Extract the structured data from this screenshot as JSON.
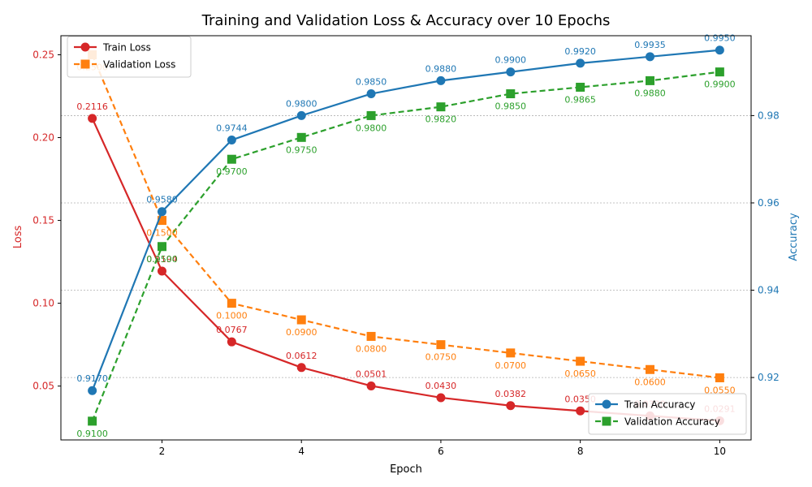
{
  "chart_data": {
    "type": "line",
    "title": "Training and Validation Loss & Accuracy over 10 Epochs",
    "xlabel": "Epoch",
    "ylabel_left": "Loss",
    "ylabel_right": "Accuracy",
    "x": [
      1,
      2,
      3,
      4,
      5,
      6,
      7,
      8,
      9,
      10
    ],
    "x_ticks": [
      2,
      4,
      6,
      8,
      10
    ],
    "xlim": [
      0.55,
      10.45
    ],
    "ylim_left": [
      0.0175,
      0.2615
    ],
    "ylim_right": [
      0.9057,
      0.9983
    ],
    "y_ticks_left": [
      0.05,
      0.1,
      0.15,
      0.2,
      0.25
    ],
    "y_tick_labels_left": [
      "0.05",
      "0.10",
      "0.15",
      "0.20",
      "0.25"
    ],
    "y_ticks_right": [
      0.92,
      0.94,
      0.96,
      0.98
    ],
    "y_tick_labels_right": [
      "0.92",
      "0.94",
      "0.96",
      "0.98"
    ],
    "grid": "horizontal, right axis",
    "series": [
      {
        "name": "Train Loss",
        "axis": "left",
        "color": "#d62728",
        "style": "solid",
        "marker": "circle",
        "label_pos": "above",
        "values": [
          0.2116,
          0.1194,
          0.0767,
          0.0612,
          0.0501,
          0.043,
          0.0382,
          0.035,
          0.032,
          0.0291
        ],
        "labels": [
          "0.2116",
          "0.1194",
          "0.0767",
          "0.0612",
          "0.0501",
          "0.0430",
          "0.0382",
          "0.0350",
          "0.0320",
          "0.0291"
        ]
      },
      {
        "name": "Validation Loss",
        "axis": "left",
        "color": "#ff7f0e",
        "style": "dashed",
        "marker": "square",
        "label_pos": "below",
        "values": [
          0.25,
          0.15,
          0.1,
          0.09,
          0.08,
          0.075,
          0.07,
          0.065,
          0.06,
          0.055
        ],
        "labels": [
          "0.2500",
          "0.1500",
          "0.1000",
          "0.0900",
          "0.0800",
          "0.0750",
          "0.0700",
          "0.0650",
          "0.0600",
          "0.0550"
        ]
      },
      {
        "name": "Train Accuracy",
        "axis": "right",
        "color": "#1f77b4",
        "style": "solid",
        "marker": "circle",
        "label_pos": "above",
        "values": [
          0.917,
          0.958,
          0.9744,
          0.98,
          0.985,
          0.988,
          0.99,
          0.992,
          0.9935,
          0.995
        ],
        "labels": [
          "0.9170",
          "0.9580",
          "0.9744",
          "0.9800",
          "0.9850",
          "0.9880",
          "0.9900",
          "0.9920",
          "0.9935",
          "0.9950"
        ]
      },
      {
        "name": "Validation Accuracy",
        "axis": "right",
        "color": "#2ca02c",
        "style": "dashed",
        "marker": "square",
        "label_pos": "below",
        "values": [
          0.91,
          0.95,
          0.97,
          0.975,
          0.98,
          0.982,
          0.985,
          0.9865,
          0.988,
          0.99
        ],
        "labels": [
          "0.9100",
          "0.9500",
          "0.9700",
          "0.9750",
          "0.9800",
          "0.9820",
          "0.9850",
          "0.9865",
          "0.9880",
          "0.9900"
        ]
      }
    ],
    "legends": [
      {
        "position": "upper-left",
        "entries": [
          "Train Loss",
          "Validation Loss"
        ]
      },
      {
        "position": "lower-right",
        "entries": [
          "Train Accuracy",
          "Validation Accuracy"
        ]
      }
    ]
  }
}
